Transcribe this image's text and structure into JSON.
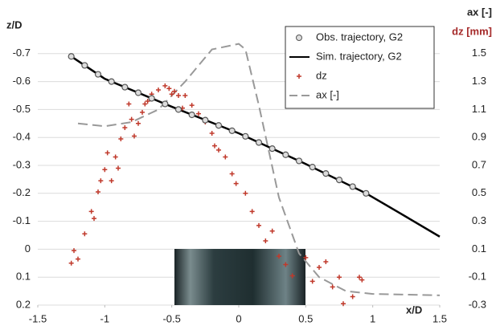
{
  "chart_data": {
    "type": "combo",
    "xlabel": "x/D",
    "ylabel": "z/D",
    "y2label_top": "ax [-]",
    "y2label": "dz [mm]",
    "xlim": [
      -1.5,
      1.5
    ],
    "xticks": [
      -1.5,
      -1,
      -0.5,
      0,
      0.5,
      1,
      1.5
    ],
    "ylim": [
      0.2,
      -0.8
    ],
    "yticks": [
      -0.7,
      -0.6,
      -0.5,
      -0.4,
      -0.3,
      -0.2,
      -0.1,
      0,
      0.1,
      0.2
    ],
    "y2lim": [
      -0.3,
      1.7
    ],
    "y2ticks": [
      1.5,
      1.3,
      1.1,
      0.9,
      0.7,
      0.5,
      0.3,
      0.1,
      -0.1,
      -0.3
    ],
    "grid": true,
    "legend": "top-right",
    "series": [
      {
        "name": "Obs. trajectory, G2",
        "type": "scatter-circle",
        "color": "#555555",
        "x": [
          -1.25,
          -1.15,
          -1.05,
          -0.95,
          -0.85,
          -0.75,
          -0.65,
          -0.55,
          -0.45,
          -0.35,
          -0.25,
          -0.15,
          -0.05,
          0.05,
          0.15,
          0.25,
          0.35,
          0.45,
          0.55,
          0.65,
          0.75,
          0.85,
          0.95
        ],
        "values": [
          -0.69,
          -0.658,
          -0.626,
          -0.6,
          -0.58,
          -0.56,
          -0.54,
          -0.52,
          -0.5,
          -0.481,
          -0.462,
          -0.443,
          -0.424,
          -0.404,
          -0.382,
          -0.36,
          -0.338,
          -0.316,
          -0.294,
          -0.271,
          -0.248,
          -0.224,
          -0.2
        ]
      },
      {
        "name": "Sim. trajectory, G2",
        "type": "line",
        "color": "#000000",
        "x": [
          -1.25,
          -1,
          -0.5,
          0,
          0.5,
          0.95,
          1.2,
          1.5
        ],
        "values": [
          -0.69,
          -0.61,
          -0.51,
          -0.415,
          -0.305,
          -0.2,
          -0.13,
          -0.045
        ]
      },
      {
        "name": "dz",
        "type": "scatter-plus",
        "color": "#c0392b",
        "axis": "y2",
        "x": [
          -1.25,
          -1.23,
          -1.2,
          -1.15,
          -1.1,
          -1.08,
          -1.05,
          -1.03,
          -1.0,
          -0.98,
          -0.95,
          -0.92,
          -0.9,
          -0.88,
          -0.85,
          -0.82,
          -0.8,
          -0.78,
          -0.75,
          -0.72,
          -0.7,
          -0.68,
          -0.65,
          -0.6,
          -0.55,
          -0.52,
          -0.5,
          -0.48,
          -0.45,
          -0.42,
          -0.4,
          -0.35,
          -0.3,
          -0.25,
          -0.2,
          -0.18,
          -0.15,
          -0.1,
          -0.05,
          -0.02,
          0.05,
          0.1,
          0.15,
          0.2,
          0.25,
          0.3,
          0.35,
          0.4,
          0.5,
          0.55,
          0.6,
          0.65,
          0.7,
          0.75,
          0.78,
          0.85,
          0.9,
          0.92
        ],
        "values": [
          0.0,
          0.09,
          0.03,
          0.21,
          0.37,
          0.32,
          0.51,
          0.59,
          0.67,
          0.79,
          0.59,
          0.76,
          0.68,
          0.89,
          0.97,
          1.14,
          1.03,
          0.91,
          1.0,
          1.08,
          1.14,
          1.16,
          1.21,
          1.24,
          1.27,
          1.25,
          1.21,
          1.23,
          1.2,
          1.11,
          1.2,
          1.13,
          1.07,
          1.01,
          0.93,
          0.84,
          0.81,
          0.76,
          0.64,
          0.57,
          0.5,
          0.37,
          0.27,
          0.16,
          0.23,
          0.05,
          -0.01,
          -0.09,
          0.04,
          -0.13,
          -0.03,
          0.01,
          -0.17,
          -0.1,
          -0.29,
          -0.24,
          -0.1,
          -0.12
        ]
      },
      {
        "name": "ax [-]",
        "type": "dashed-line",
        "color": "#999999",
        "axis": "y2",
        "x": [
          -1.2,
          -1.0,
          -0.8,
          -0.6,
          -0.4,
          -0.2,
          0,
          0.05,
          0.15,
          0.3,
          0.45,
          0.6,
          0.8,
          1.0,
          1.5
        ],
        "values": [
          1.0,
          0.98,
          1.01,
          1.1,
          1.3,
          1.53,
          1.57,
          1.53,
          1.13,
          0.47,
          0.07,
          -0.1,
          -0.2,
          -0.22,
          -0.23
        ]
      }
    ]
  }
}
